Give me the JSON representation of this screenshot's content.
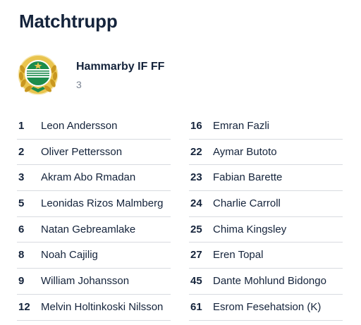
{
  "page": {
    "title": "Matchtrupp"
  },
  "team": {
    "name": "Hammarby IF FF",
    "count": "3",
    "logo_icon": "hammarby-crest-icon",
    "colors": {
      "green": "#1c8c4c",
      "gold": "#d4a72c",
      "white": "#ffffff"
    }
  },
  "roster": {
    "left": [
      {
        "number": "1",
        "name": "Leon Andersson"
      },
      {
        "number": "2",
        "name": "Oliver Pettersson"
      },
      {
        "number": "3",
        "name": "Akram Abo Rmadan"
      },
      {
        "number": "5",
        "name": "Leonidas Rizos Malmberg"
      },
      {
        "number": "6",
        "name": "Natan Gebreamlake"
      },
      {
        "number": "8",
        "name": "Noah Cajilig"
      },
      {
        "number": "9",
        "name": "William Johansson"
      },
      {
        "number": "12",
        "name": "Melvin Holtinkoski Nilsson"
      }
    ],
    "right": [
      {
        "number": "16",
        "name": "Emran Fazli"
      },
      {
        "number": "22",
        "name": "Aymar Butoto"
      },
      {
        "number": "23",
        "name": "Fabian Barette"
      },
      {
        "number": "24",
        "name": "Charlie Carroll"
      },
      {
        "number": "25",
        "name": "Chima Kingsley"
      },
      {
        "number": "27",
        "name": "Eren Topal"
      },
      {
        "number": "45",
        "name": "Dante Mohlund Bidongo"
      },
      {
        "number": "61",
        "name": "Esrom Fesehatsion (K)"
      }
    ]
  }
}
